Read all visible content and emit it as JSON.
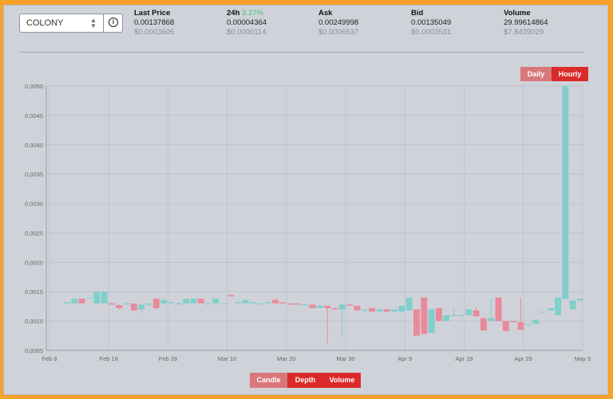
{
  "market": {
    "selected_coin": "COLONY",
    "stats": [
      {
        "label": "Last Price",
        "value": "0.00137868",
        "sub": "$0.0003605"
      },
      {
        "label": "24h",
        "label_change": "3.27%",
        "value": "0.00004364",
        "sub": "$0.0000114"
      },
      {
        "label": "Ask",
        "value": "0.00249998",
        "sub": "$0.0006537"
      },
      {
        "label": "Bid",
        "value": "0.00135049",
        "sub": "$0.0003531"
      },
      {
        "label": "Volume",
        "value": "29.99614864",
        "sub": "$7.8439029"
      }
    ]
  },
  "interval_toggle": {
    "daily": "Daily",
    "hourly": "Hourly",
    "active": "hourly"
  },
  "view_toggle": {
    "candle": "Candle",
    "depth": "Depth",
    "volume": "Volume",
    "active": "depth"
  },
  "colors": {
    "up": "#7fcfca",
    "down": "#e98a9a",
    "accent": "#db2a2a"
  },
  "chart_data": {
    "type": "candlestick",
    "ylim": [
      0.0005,
      0.005
    ],
    "y_ticks": [
      "0,0005",
      "0,0010",
      "0,0015",
      "0,0020",
      "0,0025",
      "0,0030",
      "0,0035",
      "0,0040",
      "0,0045",
      "0,0050"
    ],
    "x_ticks": [
      "Feb 8",
      "Feb 18",
      "Feb 28",
      "Mar 10",
      "Mar 20",
      "Mar 30",
      "Apr 9",
      "Apr 19",
      "Apr 29",
      "May 9"
    ],
    "candles": [
      {
        "o": 0.0013,
        "c": 0.00132,
        "h": 0.00132,
        "l": 0.0013
      },
      {
        "o": 0.0013,
        "c": 0.00138,
        "h": 0.00138,
        "l": 0.0013
      },
      {
        "o": 0.00138,
        "c": 0.0013,
        "h": 0.00138,
        "l": 0.0013
      },
      {
        "o": 0.0014,
        "c": 0.0014,
        "h": 0.0014,
        "l": 0.0014
      },
      {
        "o": 0.0013,
        "c": 0.0015,
        "h": 0.0015,
        "l": 0.0013
      },
      {
        "o": 0.0013,
        "c": 0.0015,
        "h": 0.0015,
        "l": 0.0013
      },
      {
        "o": 0.0013,
        "c": 0.00128,
        "h": 0.00132,
        "l": 0.00128
      },
      {
        "o": 0.00127,
        "c": 0.00122,
        "h": 0.00128,
        "l": 0.0012
      },
      {
        "o": 0.0013,
        "c": 0.0013,
        "h": 0.00132,
        "l": 0.00128
      },
      {
        "o": 0.0013,
        "c": 0.00118,
        "h": 0.0013,
        "l": 0.00118
      },
      {
        "o": 0.0012,
        "c": 0.00128,
        "h": 0.00128,
        "l": 0.00112
      },
      {
        "o": 0.00128,
        "c": 0.0013,
        "h": 0.0013,
        "l": 0.00125
      },
      {
        "o": 0.00138,
        "c": 0.00122,
        "h": 0.0014,
        "l": 0.0012
      },
      {
        "o": 0.0013,
        "c": 0.00136,
        "h": 0.00136,
        "l": 0.0013
      },
      {
        "o": 0.0013,
        "c": 0.00132,
        "h": 0.00132,
        "l": 0.0013
      },
      {
        "o": 0.0013,
        "c": 0.0013,
        "h": 0.00132,
        "l": 0.00128
      },
      {
        "o": 0.0013,
        "c": 0.00138,
        "h": 0.00138,
        "l": 0.0013
      },
      {
        "o": 0.0013,
        "c": 0.00138,
        "h": 0.00138,
        "l": 0.0013
      },
      {
        "o": 0.00138,
        "c": 0.0013,
        "h": 0.00138,
        "l": 0.0013
      },
      {
        "o": 0.0013,
        "c": 0.0013,
        "h": 0.0013,
        "l": 0.0013
      },
      {
        "o": 0.0013,
        "c": 0.00138,
        "h": 0.00138,
        "l": 0.0013
      },
      {
        "o": 0.0013,
        "c": 0.0013,
        "h": 0.0013,
        "l": 0.0013
      },
      {
        "o": 0.00144,
        "c": 0.00142,
        "h": 0.00146,
        "l": 0.00142
      },
      {
        "o": 0.0013,
        "c": 0.00132,
        "h": 0.00132,
        "l": 0.0013
      },
      {
        "o": 0.0013,
        "c": 0.00136,
        "h": 0.00136,
        "l": 0.0013
      },
      {
        "o": 0.0013,
        "c": 0.00132,
        "h": 0.00132,
        "l": 0.0013
      },
      {
        "o": 0.0013,
        "c": 0.0013,
        "h": 0.0013,
        "l": 0.0013
      },
      {
        "o": 0.0013,
        "c": 0.00132,
        "h": 0.00132,
        "l": 0.0013
      },
      {
        "o": 0.00136,
        "c": 0.0013,
        "h": 0.00138,
        "l": 0.0013
      },
      {
        "o": 0.00132,
        "c": 0.0013,
        "h": 0.00132,
        "l": 0.0013
      },
      {
        "o": 0.0013,
        "c": 0.00128,
        "h": 0.0013,
        "l": 0.00128
      },
      {
        "o": 0.0013,
        "c": 0.00128,
        "h": 0.0013,
        "l": 0.00128
      },
      {
        "o": 0.00128,
        "c": 0.00128,
        "h": 0.0013,
        "l": 0.00126
      },
      {
        "o": 0.00128,
        "c": 0.00122,
        "h": 0.00128,
        "l": 0.00122
      },
      {
        "o": 0.00122,
        "c": 0.00126,
        "h": 0.00126,
        "l": 0.00122
      },
      {
        "o": 0.00126,
        "c": 0.00122,
        "h": 0.00126,
        "l": 0.00062
      },
      {
        "o": 0.00122,
        "c": 0.0012,
        "h": 0.00122,
        "l": 0.0012
      },
      {
        "o": 0.0012,
        "c": 0.00128,
        "h": 0.00128,
        "l": 0.00072
      },
      {
        "o": 0.00128,
        "c": 0.00126,
        "h": 0.0013,
        "l": 0.00126
      },
      {
        "o": 0.00126,
        "c": 0.00118,
        "h": 0.00126,
        "l": 0.00118
      },
      {
        "o": 0.00118,
        "c": 0.0012,
        "h": 0.0012,
        "l": 0.00115
      },
      {
        "o": 0.00122,
        "c": 0.00116,
        "h": 0.00122,
        "l": 0.00116
      },
      {
        "o": 0.00116,
        "c": 0.0012,
        "h": 0.0012,
        "l": 0.00116
      },
      {
        "o": 0.0012,
        "c": 0.00116,
        "h": 0.0012,
        "l": 0.00116
      },
      {
        "o": 0.00116,
        "c": 0.0012,
        "h": 0.0012,
        "l": 0.00116
      },
      {
        "o": 0.00116,
        "c": 0.00126,
        "h": 0.00126,
        "l": 0.00116
      },
      {
        "o": 0.00118,
        "c": 0.0014,
        "h": 0.0014,
        "l": 0.00118
      },
      {
        "o": 0.0012,
        "c": 0.00075,
        "h": 0.0012,
        "l": 0.00075
      },
      {
        "o": 0.0014,
        "c": 0.00078,
        "h": 0.0014,
        "l": 0.00078
      },
      {
        "o": 0.0008,
        "c": 0.0012,
        "h": 0.0012,
        "l": 0.0008
      },
      {
        "o": 0.00122,
        "c": 0.001,
        "h": 0.00122,
        "l": 0.001
      },
      {
        "o": 0.001,
        "c": 0.0011,
        "h": 0.0011,
        "l": 0.001
      },
      {
        "o": 0.0011,
        "c": 0.0011,
        "h": 0.00122,
        "l": 0.00108
      },
      {
        "o": 0.0011,
        "c": 0.0011,
        "h": 0.0011,
        "l": 0.0011
      },
      {
        "o": 0.0011,
        "c": 0.0012,
        "h": 0.0012,
        "l": 0.0011
      },
      {
        "o": 0.00118,
        "c": 0.00108,
        "h": 0.00124,
        "l": 0.00108
      },
      {
        "o": 0.00105,
        "c": 0.00084,
        "h": 0.00105,
        "l": 0.00084
      },
      {
        "o": 0.001,
        "c": 0.00105,
        "h": 0.0014,
        "l": 0.001
      },
      {
        "o": 0.0014,
        "c": 0.001,
        "h": 0.0014,
        "l": 0.001
      },
      {
        "o": 0.001,
        "c": 0.00083,
        "h": 0.001,
        "l": 0.00083
      },
      {
        "o": 0.001,
        "c": 0.00098,
        "h": 0.001,
        "l": 0.00098
      },
      {
        "o": 0.00098,
        "c": 0.00085,
        "h": 0.0014,
        "l": 0.00085
      },
      {
        "o": 0.00095,
        "c": 0.00095,
        "h": 0.00095,
        "l": 0.00095
      },
      {
        "o": 0.00095,
        "c": 0.00102,
        "h": 0.00102,
        "l": 0.00095
      },
      {
        "o": 0.00115,
        "c": 0.00116,
        "h": 0.00116,
        "l": 0.00115
      },
      {
        "o": 0.00118,
        "c": 0.00122,
        "h": 0.00122,
        "l": 0.00118
      },
      {
        "o": 0.0011,
        "c": 0.0014,
        "h": 0.0014,
        "l": 0.0011
      },
      {
        "o": 0.00138,
        "c": 0.005,
        "h": 0.005,
        "l": 0.00138
      },
      {
        "o": 0.0012,
        "c": 0.00135,
        "h": 0.00135,
        "l": 0.0012
      },
      {
        "o": 0.00135,
        "c": 0.00138,
        "h": 0.00138,
        "l": 0.00135
      }
    ]
  }
}
